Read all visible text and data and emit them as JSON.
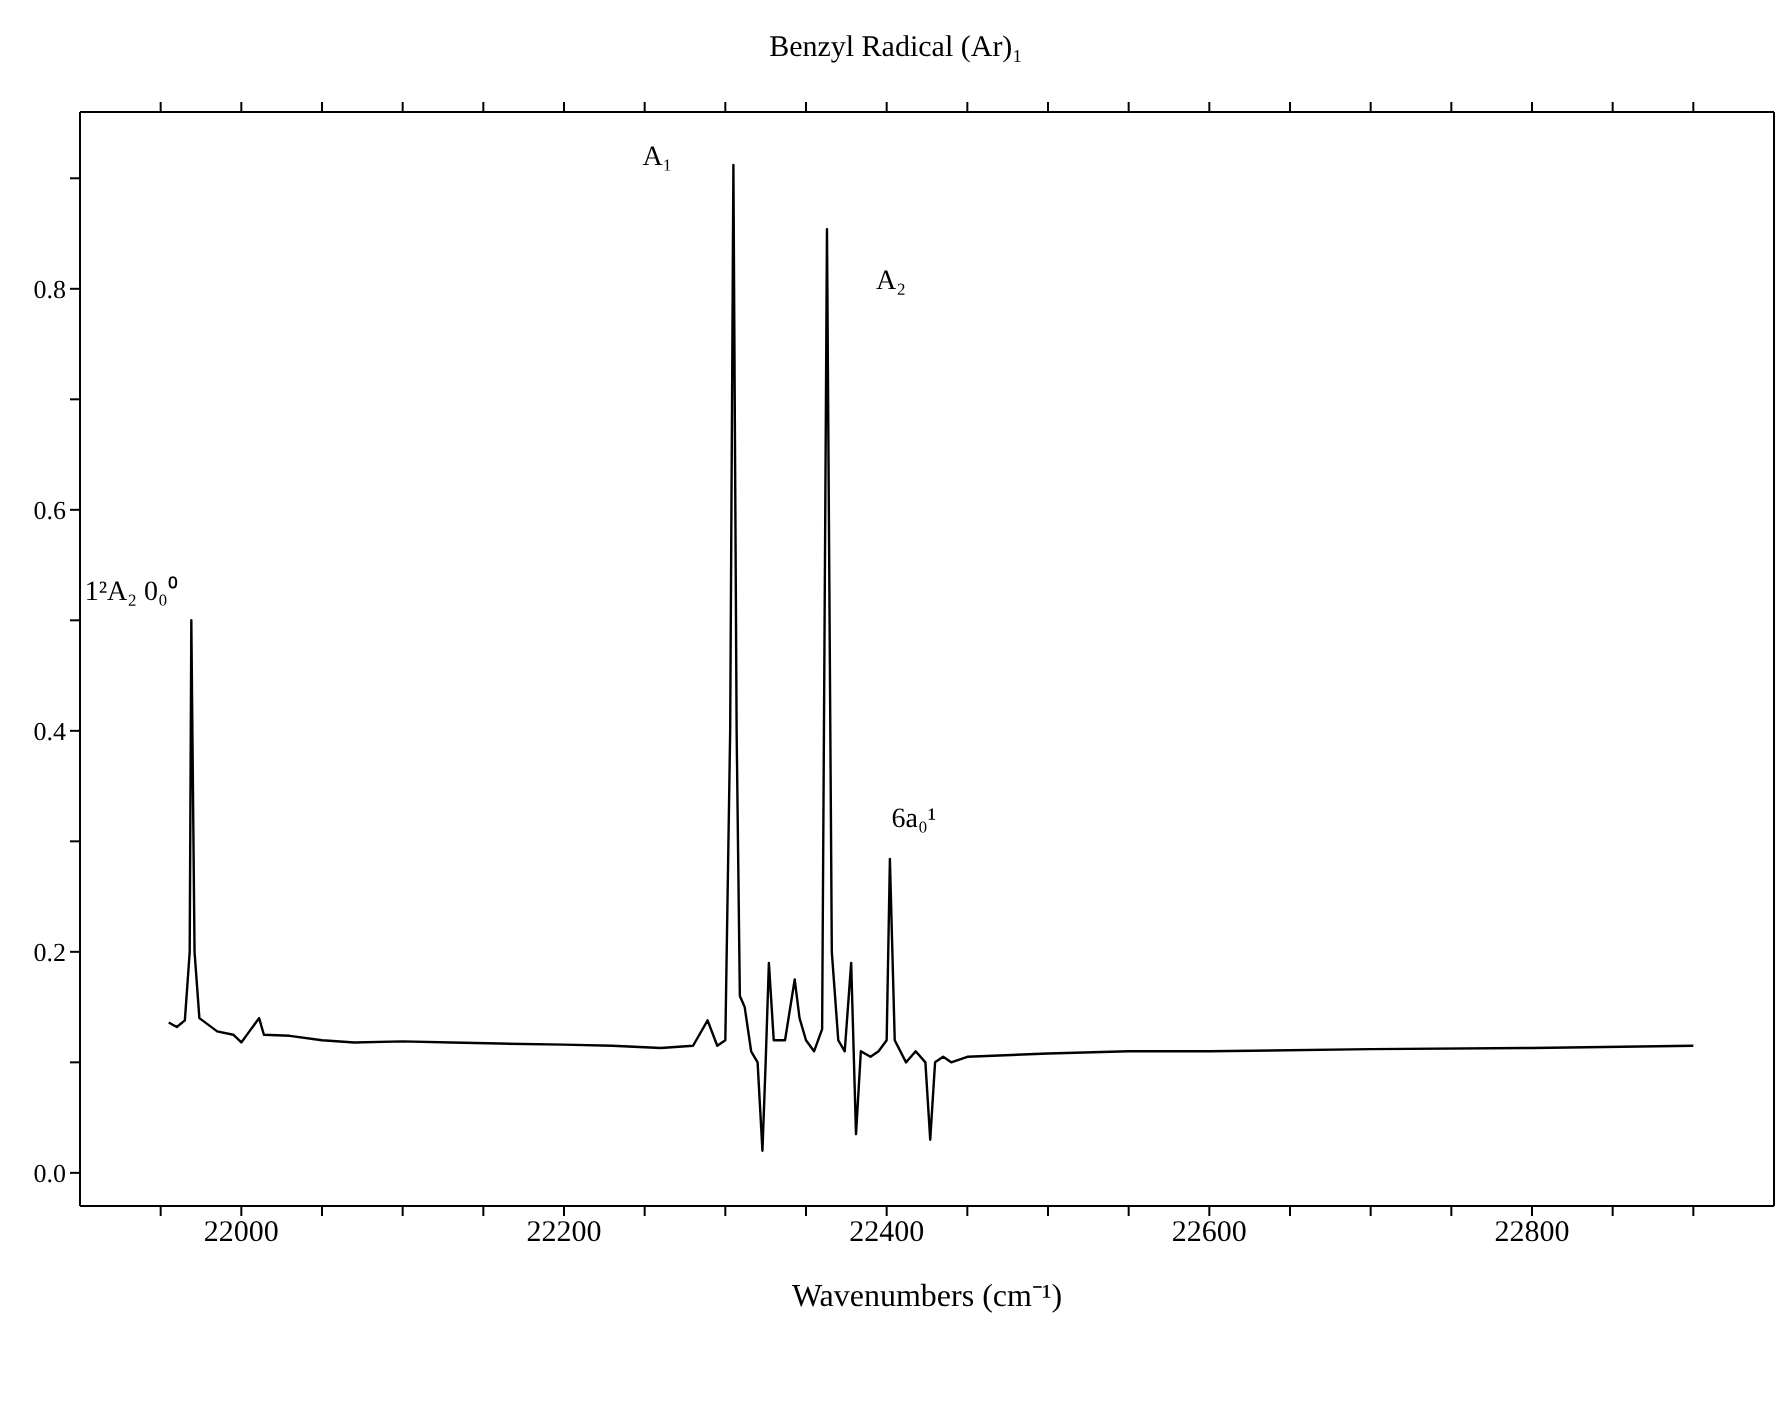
{
  "chart_data": {
    "type": "line",
    "title": "Benzyl Radical (Ar)₁",
    "xlabel": "Wavenumbers (cm⁻¹)",
    "annotations": [
      {
        "text": "1²A₂ 0₀⁰",
        "x": 21969,
        "y": 0.5
      },
      {
        "text": "A₁",
        "x": 22305,
        "y": 0.912
      },
      {
        "text": "A₂",
        "x": 22363,
        "y": 0.854
      },
      {
        "text": "6a₀¹",
        "x": 22402,
        "y": 0.284
      }
    ],
    "series": [
      {
        "color": "#000000",
        "x": [
          21955,
          21960,
          21965,
          21968,
          21969,
          21971,
          21974,
          21985,
          21995,
          22000,
          22005,
          22011,
          22014,
          22030,
          22050,
          22070,
          22100,
          22130,
          22160,
          22200,
          22230,
          22260,
          22280,
          22289,
          22295,
          22300,
          22303,
          22305,
          22307,
          22309,
          22312,
          22316,
          22320,
          22323,
          22325,
          22327,
          22330,
          22337,
          22343,
          22346,
          22350,
          22355,
          22360,
          22363,
          22366,
          22370,
          22374,
          22378,
          22381,
          22384,
          22390,
          22395,
          22400,
          22402,
          22405,
          22412,
          22418,
          22424,
          22427,
          22430,
          22435,
          22440,
          22450,
          22500,
          22550,
          22600,
          22700,
          22800,
          22900
        ],
        "values": [
          0.136,
          0.132,
          0.138,
          0.2,
          0.5,
          0.2,
          0.14,
          0.128,
          0.125,
          0.118,
          0.128,
          0.14,
          0.125,
          0.124,
          0.12,
          0.118,
          0.119,
          0.118,
          0.117,
          0.116,
          0.115,
          0.113,
          0.115,
          0.138,
          0.115,
          0.12,
          0.4,
          0.912,
          0.4,
          0.16,
          0.15,
          0.11,
          0.1,
          0.02,
          0.1,
          0.19,
          0.12,
          0.12,
          0.175,
          0.14,
          0.12,
          0.11,
          0.13,
          0.854,
          0.2,
          0.12,
          0.11,
          0.19,
          0.035,
          0.11,
          0.105,
          0.11,
          0.12,
          0.284,
          0.12,
          0.1,
          0.11,
          0.1,
          0.03,
          0.1,
          0.105,
          0.1,
          0.105,
          0.108,
          0.11,
          0.11,
          0.112,
          0.113,
          0.115
        ]
      }
    ],
    "xlim": [
      21900,
      22950
    ],
    "xticks": [
      {
        "value": 21950,
        "label": null
      },
      22000,
      {
        "value": 22050,
        "label": null
      },
      {
        "value": 22100,
        "label": null
      },
      {
        "value": 22150,
        "label": null
      },
      22200,
      {
        "value": 22250,
        "label": null
      },
      {
        "value": 22300,
        "label": null
      },
      {
        "value": 22350,
        "label": null
      },
      22400,
      {
        "value": 22450,
        "label": null
      },
      {
        "value": 22500,
        "label": null
      },
      {
        "value": 22550,
        "label": null
      },
      22600,
      {
        "value": 22650,
        "label": null
      },
      {
        "value": 22700,
        "label": null
      },
      {
        "value": 22750,
        "label": null
      },
      22800,
      {
        "value": 22850,
        "label": null
      },
      {
        "value": 22900,
        "label": null
      }
    ],
    "ylim": [
      -0.03,
      0.96
    ],
    "yticks": [
      {
        "value": 0,
        "label": "0.0"
      },
      {
        "value": 0.1,
        "label": null
      },
      0.2,
      {
        "value": 0.3,
        "label": null
      },
      0.4,
      {
        "value": 0.5,
        "label": null
      },
      0.6,
      {
        "value": 0.7,
        "label": null
      },
      0.8,
      {
        "value": 0.9,
        "label": null
      }
    ],
    "marker": "none",
    "line_style": "solid"
  }
}
